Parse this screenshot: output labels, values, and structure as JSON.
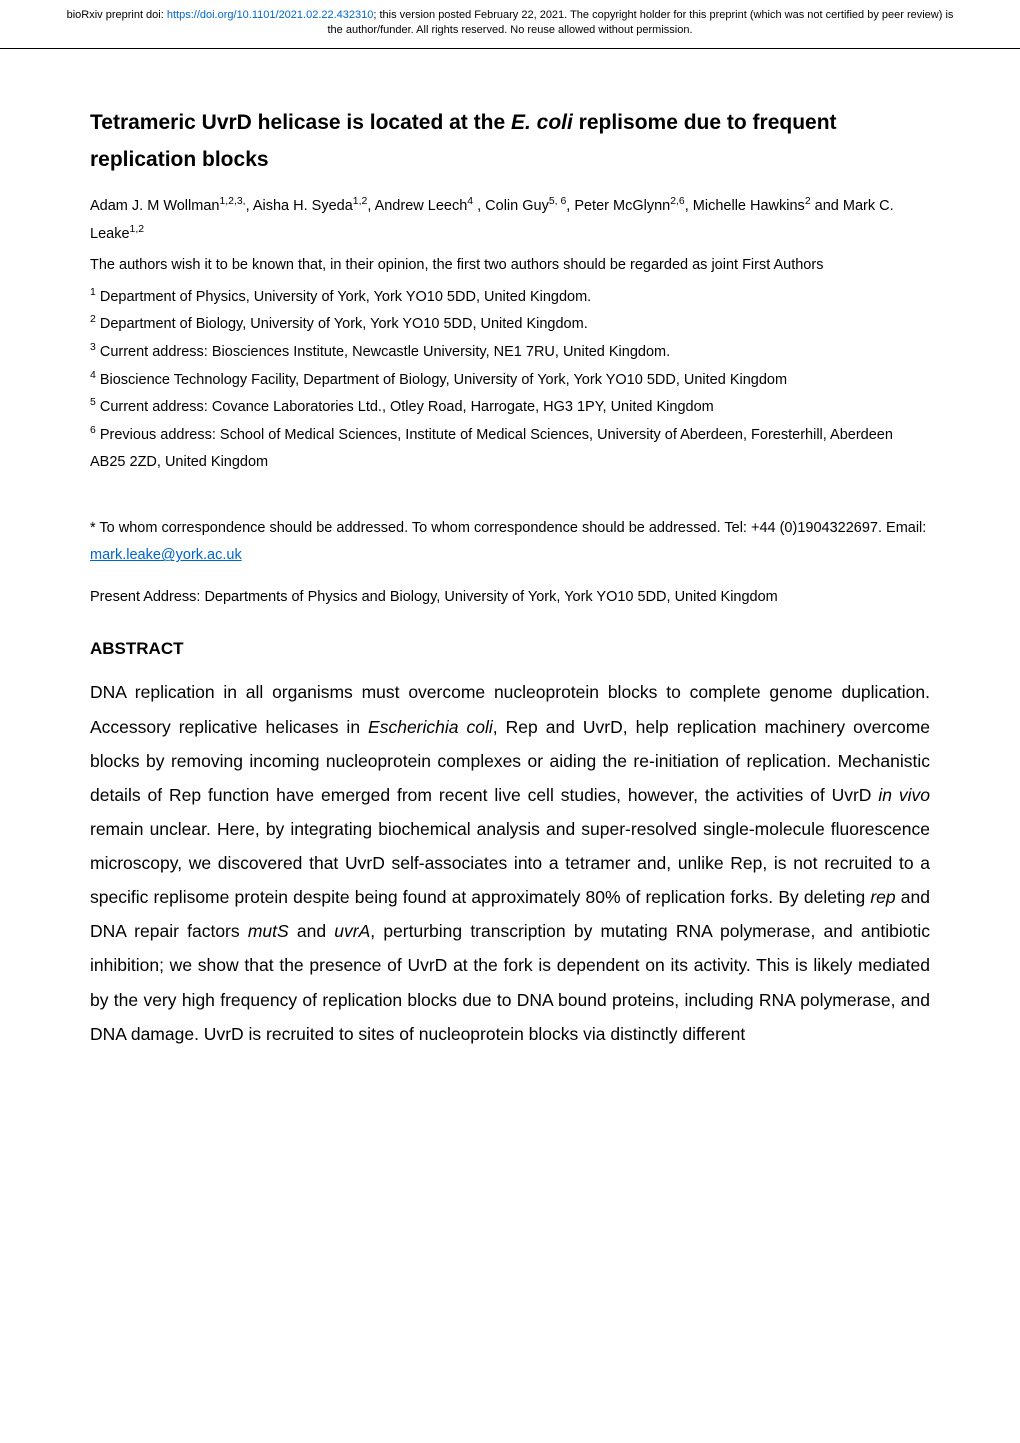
{
  "preprint_header": {
    "prefix": "bioRxiv preprint doi: ",
    "doi_url": "https://doi.org/10.1101/2021.02.22.432310",
    "suffix": "; this version posted February 22, 2021. The copyright holder for this preprint (which was not certified by peer review) is the author/funder. All rights reserved. No reuse allowed without permission."
  },
  "title": {
    "part1": "Tetrameric UvrD helicase is located at the ",
    "italic": "E. coli",
    "part2": " replisome due to frequent replication blocks"
  },
  "authors_html": "Adam J. M Wollman<sup>1,2,3,</sup>, Aisha H. Syeda<sup>1,2</sup>, Andrew Leech<sup>4</sup> , Colin Guy<sup>5, 6</sup>, Peter McGlynn<sup>2,6</sup>, Michelle Hawkins<sup>2</sup> and Mark C. Leake<sup>1,2</sup>",
  "declaration": "The authors wish it to be known that, in their opinion, the first two authors should be regarded as joint First Authors",
  "affiliations": [
    "<sup>1</sup> Department of Physics, University of York, York YO10 5DD, United Kingdom.",
    "<sup>2</sup> Department of Biology, University of York, York YO10 5DD, United Kingdom.",
    "<sup>3</sup> Current address: Biosciences Institute, Newcastle University, NE1 7RU, United Kingdom.",
    "<sup>4</sup> Bioscience Technology Facility, Department of Biology, University of York, York YO10 5DD, United Kingdom",
    "<sup>5</sup> Current address: Covance Laboratories Ltd., Otley Road, Harrogate, HG3 1PY, United Kingdom",
    "<sup>6</sup> Previous address: School of Medical Sciences, Institute of Medical Sciences, University of Aberdeen, Foresterhill, Aberdeen AB25 2ZD, United Kingdom"
  ],
  "correspondence": {
    "text": "* To whom correspondence should be addressed. To whom correspondence should be addressed. Tel: +44 (0)1904322697. Email: ",
    "email": "mark.leake@york.ac.uk"
  },
  "present_address": "Present Address: Departments of Physics and Biology, University of York, York YO10 5DD, United Kingdom",
  "abstract": {
    "heading": "ABSTRACT",
    "body_html": "DNA replication in all organisms must overcome nucleoprotein blocks to complete genome duplication. Accessory replicative helicases in <em>Escherichia coli</em>, Rep and UvrD, help replication machinery overcome blocks by removing incoming nucleoprotein complexes or aiding the re-initiation of replication. Mechanistic details of Rep function have emerged from recent live cell studies, however, the activities of UvrD <em>in vivo</em> remain unclear. Here, by integrating biochemical analysis and super-resolved single-molecule fluorescence microscopy, we discovered that UvrD self-associates into a tetramer and, unlike Rep, is not recruited to a specific replisome protein despite being found at approximately 80% of replication forks. By deleting <em>rep</em> and DNA repair factors <em>mutS</em> and <em>uvrA</em>, perturbing transcription by mutating RNA polymerase, and antibiotic inhibition; we show that the presence of UvrD at the fork is dependent on its activity. This is likely mediated by the very high frequency of replication blocks due to DNA bound proteins, including RNA polymerase, and DNA damage. UvrD is recruited to sites of nucleoprotein blocks via distinctly different"
  }
}
